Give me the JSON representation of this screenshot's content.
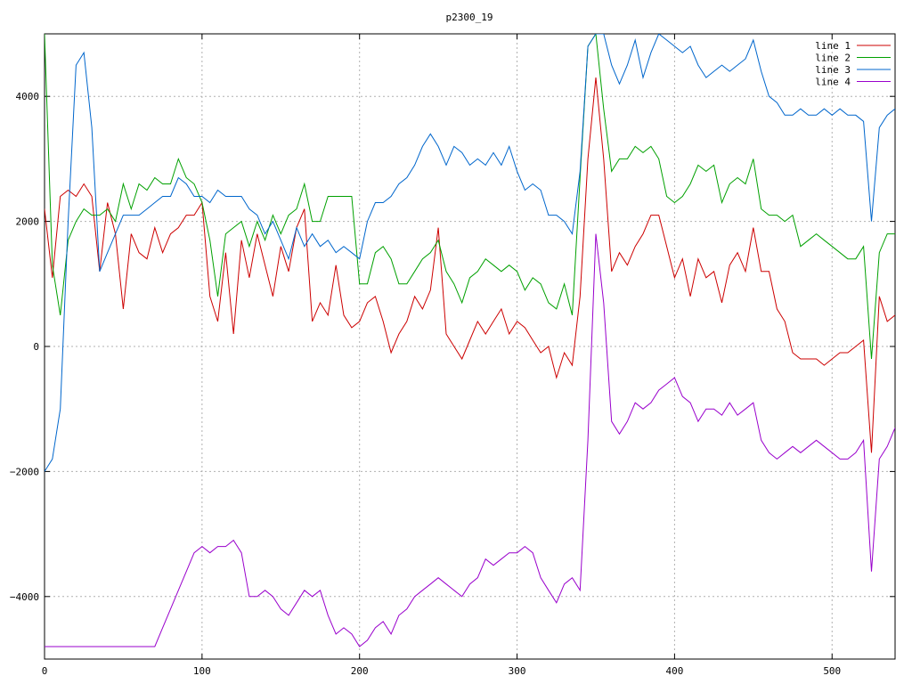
{
  "chart_data": {
    "type": "line",
    "title": "p2300_19",
    "xlabel": "",
    "ylabel": "",
    "xlim": [
      0,
      540
    ],
    "ylim": [
      -5000,
      5000
    ],
    "xticks": [
      0,
      100,
      200,
      300,
      400,
      500
    ],
    "yticks": [
      -4000,
      -2000,
      0,
      2000,
      4000
    ],
    "grid": true,
    "legend_position": "top-right",
    "x": [
      0,
      5,
      10,
      15,
      20,
      25,
      30,
      35,
      40,
      45,
      50,
      55,
      60,
      65,
      70,
      75,
      80,
      85,
      90,
      95,
      100,
      105,
      110,
      115,
      120,
      125,
      130,
      135,
      140,
      145,
      150,
      155,
      160,
      165,
      170,
      175,
      180,
      185,
      190,
      195,
      200,
      205,
      210,
      215,
      220,
      225,
      230,
      235,
      240,
      245,
      250,
      255,
      260,
      265,
      270,
      275,
      280,
      285,
      290,
      295,
      300,
      305,
      310,
      315,
      320,
      325,
      330,
      335,
      340,
      345,
      350,
      355,
      360,
      365,
      370,
      375,
      380,
      385,
      390,
      395,
      400,
      405,
      410,
      415,
      420,
      425,
      430,
      435,
      440,
      445,
      450,
      455,
      460,
      465,
      470,
      475,
      480,
      485,
      490,
      495,
      500,
      505,
      510,
      515,
      520,
      525,
      530,
      535,
      540
    ],
    "series": [
      {
        "name": "line 1",
        "color": "#cc0000",
        "values": [
          2200,
          1100,
          2400,
          2500,
          2400,
          2600,
          2400,
          1200,
          2300,
          1800,
          600,
          1800,
          1500,
          1400,
          1900,
          1500,
          1800,
          1900,
          2100,
          2100,
          2300,
          800,
          400,
          1500,
          200,
          1700,
          1100,
          1800,
          1300,
          800,
          1600,
          1200,
          1900,
          2200,
          400,
          700,
          500,
          1300,
          500,
          300,
          400,
          700,
          800,
          400,
          -100,
          200,
          400,
          800,
          600,
          900,
          1900,
          200,
          0,
          -200,
          100,
          400,
          200,
          400,
          600,
          200,
          400,
          300,
          100,
          -100,
          0,
          -500,
          -100,
          -300,
          800,
          3000,
          4300,
          3000,
          1200,
          1500,
          1300,
          1600,
          1800,
          2100,
          2100,
          1600,
          1100,
          1400,
          800,
          1400,
          1100,
          1200,
          700,
          1300,
          1500,
          1200,
          1900,
          1200,
          1200,
          600,
          400,
          -100,
          -200,
          -200,
          -200,
          -300,
          -200,
          -100,
          -100,
          0,
          100,
          -1700,
          800,
          400,
          500
        ]
      },
      {
        "name": "line 2",
        "color": "#00a000",
        "values": [
          5000,
          1300,
          500,
          1700,
          2000,
          2200,
          2100,
          2100,
          2200,
          2000,
          2600,
          2200,
          2600,
          2500,
          2700,
          2600,
          2600,
          3000,
          2700,
          2600,
          2300,
          1700,
          800,
          1800,
          1900,
          2000,
          1600,
          2000,
          1700,
          2100,
          1800,
          2100,
          2200,
          2600,
          2000,
          2000,
          2400,
          2400,
          2400,
          2400,
          1000,
          1000,
          1500,
          1600,
          1400,
          1000,
          1000,
          1200,
          1400,
          1500,
          1700,
          1200,
          1000,
          700,
          1100,
          1200,
          1400,
          1300,
          1200,
          1300,
          1200,
          900,
          1100,
          1000,
          700,
          600,
          1000,
          500,
          2700,
          4800,
          5000,
          3800,
          2800,
          3000,
          3000,
          3200,
          3100,
          3200,
          3000,
          2400,
          2300,
          2400,
          2600,
          2900,
          2800,
          2900,
          2300,
          2600,
          2700,
          2600,
          3000,
          2200,
          2100,
          2100,
          2000,
          2100,
          1600,
          1700,
          1800,
          1700,
          1600,
          1500,
          1400,
          1400,
          1600,
          -200,
          1500,
          1800,
          1800
        ]
      },
      {
        "name": "line 3",
        "color": "#0066cc",
        "values": [
          -2000,
          -1800,
          -1000,
          2000,
          4500,
          4700,
          3500,
          1200,
          1500,
          1800,
          2100,
          2100,
          2100,
          2200,
          2300,
          2400,
          2400,
          2700,
          2600,
          2400,
          2400,
          2300,
          2500,
          2400,
          2400,
          2400,
          2200,
          2100,
          1800,
          2000,
          1700,
          1400,
          1900,
          1600,
          1800,
          1600,
          1700,
          1500,
          1600,
          1500,
          1400,
          2000,
          2300,
          2300,
          2400,
          2600,
          2700,
          2900,
          3200,
          3400,
          3200,
          2900,
          3200,
          3100,
          2900,
          3000,
          2900,
          3100,
          2900,
          3200,
          2800,
          2500,
          2600,
          2500,
          2100,
          2100,
          2000,
          1800,
          2800,
          4800,
          5000,
          5000,
          4500,
          4200,
          4500,
          4900,
          4300,
          4700,
          5000,
          4900,
          4800,
          4700,
          4800,
          4500,
          4300,
          4400,
          4500,
          4400,
          4500,
          4600,
          4900,
          4400,
          4000,
          3900,
          3700,
          3700,
          3800,
          3700,
          3700,
          3800,
          3700,
          3800,
          3700,
          3700,
          3600,
          2000,
          3500,
          3700,
          3800
        ]
      },
      {
        "name": "line 4",
        "color": "#9900cc",
        "values": [
          -4800,
          -4800,
          -4800,
          -4800,
          -4800,
          -4800,
          -4800,
          -4800,
          -4800,
          -4800,
          -4800,
          -4800,
          -4800,
          -4800,
          -4800,
          -4500,
          -4200,
          -3900,
          -3600,
          -3300,
          -3200,
          -3300,
          -3200,
          -3200,
          -3100,
          -3300,
          -4000,
          -4000,
          -3900,
          -4000,
          -4200,
          -4300,
          -4100,
          -3900,
          -4000,
          -3900,
          -4300,
          -4600,
          -4500,
          -4600,
          -4800,
          -4700,
          -4500,
          -4400,
          -4600,
          -4300,
          -4200,
          -4000,
          -3900,
          -3800,
          -3700,
          -3800,
          -3900,
          -4000,
          -3800,
          -3700,
          -3400,
          -3500,
          -3400,
          -3300,
          -3300,
          -3200,
          -3300,
          -3700,
          -3900,
          -4100,
          -3800,
          -3700,
          -3900,
          -1500,
          1800,
          700,
          -1200,
          -1400,
          -1200,
          -900,
          -1000,
          -900,
          -700,
          -600,
          -500,
          -800,
          -900,
          -1200,
          -1000,
          -1000,
          -1100,
          -900,
          -1100,
          -1000,
          -900,
          -1500,
          -1700,
          -1800,
          -1700,
          -1600,
          -1700,
          -1600,
          -1500,
          -1600,
          -1700,
          -1800,
          -1800,
          -1700,
          -1500,
          -3600,
          -1800,
          -1600,
          -1300
        ]
      }
    ]
  }
}
